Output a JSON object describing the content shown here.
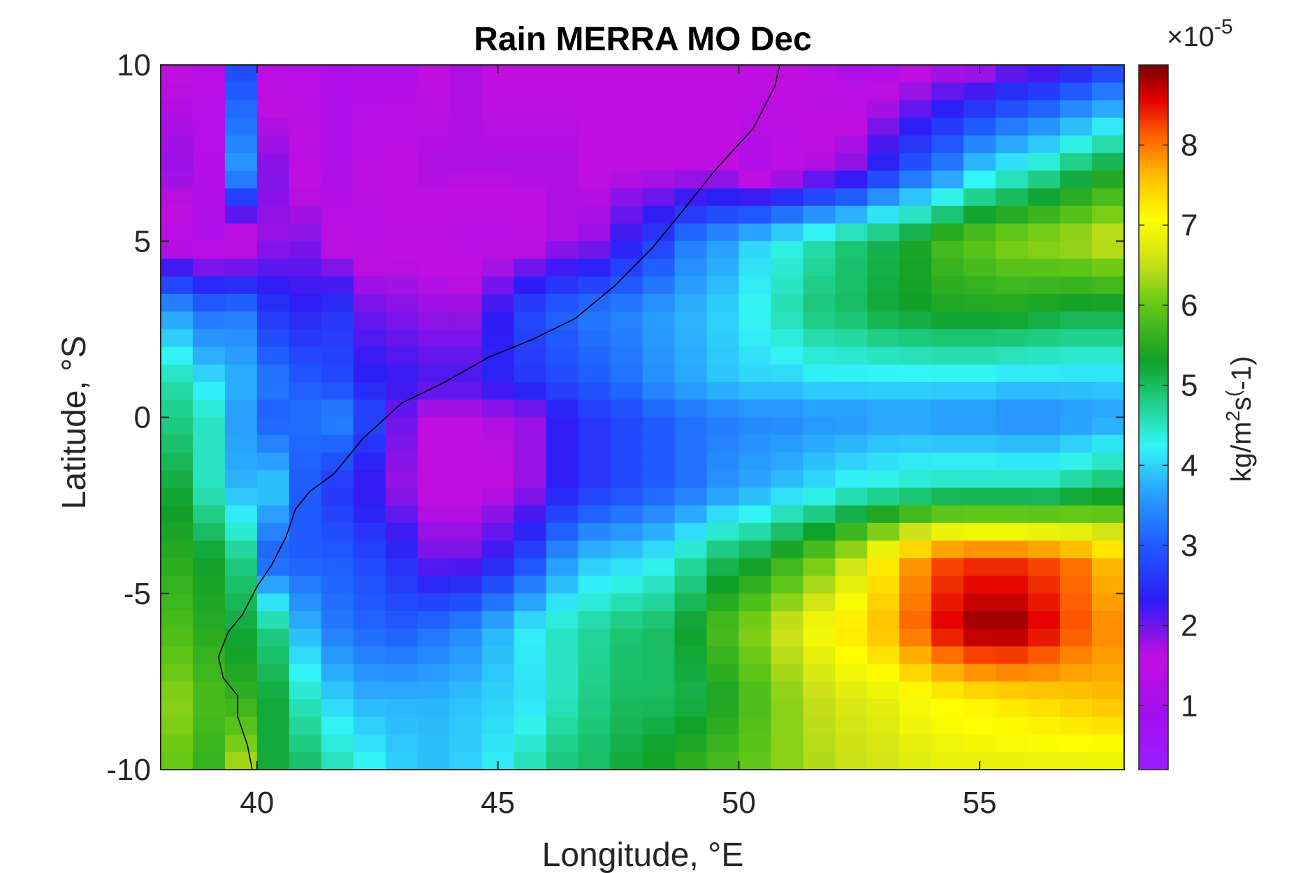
{
  "chart_data": {
    "type": "heatmap",
    "title": "Rain MERRA MO Dec",
    "xlabel": "Longitude, °E",
    "ylabel": "Latitude, °S",
    "xlim": [
      38,
      58
    ],
    "ylim": [
      -10,
      10
    ],
    "xticks": [
      40,
      45,
      50,
      55
    ],
    "xtick_labels": [
      "40",
      "45",
      "50",
      "55"
    ],
    "yticks": [
      10,
      5,
      0,
      -5,
      -10
    ],
    "ytick_labels": [
      "10",
      "5",
      "0",
      "-5",
      "-10"
    ],
    "colorbar": {
      "label": "kg/m",
      "label_sup1": "2",
      "label_mid": "s",
      "label_sup2": "(",
      "label_end": "-1)",
      "multiplier_base": "×10",
      "multiplier_exp": "-5",
      "range": [
        0.2,
        9.0
      ],
      "ticks": [
        1,
        2,
        3,
        4,
        5,
        6,
        7,
        8
      ],
      "tick_labels": [
        "1",
        "2",
        "3",
        "4",
        "5",
        "6",
        "7",
        "8"
      ],
      "colormap": "hsv-reversed"
    },
    "grid": false,
    "grid_cols": 30,
    "grid_rows": 40,
    "z_anchor_rows": {
      "lat_10": [
        1.6,
        1.4,
        2.8,
        1.4,
        1.4,
        1.2,
        1.2,
        1.2,
        1.6,
        1.7,
        1.6,
        1.6,
        1.6,
        1.6,
        1.6,
        1.6,
        1.6,
        1.6,
        1.6,
        1.6,
        1.4,
        1.2,
        1.2,
        1.4,
        1.6,
        1.6,
        1.9,
        2.0,
        2.3,
        2.6
      ],
      "lat_7": [
        1.8,
        1.3,
        3.6,
        1.9,
        1.5,
        1.2,
        1.5,
        1.6,
        1.7,
        1.7,
        1.7,
        1.7,
        1.7,
        1.6,
        1.6,
        1.6,
        1.6,
        1.6,
        1.2,
        1.4,
        1.7,
        1.9,
        2.5,
        3.0,
        3.4,
        4.0,
        4.3,
        4.6,
        5.0,
        5.3
      ],
      "lat_5": [
        1.4,
        1.2,
        1.2,
        1.8,
        1.9,
        1.5,
        1.4,
        1.5,
        1.5,
        1.4,
        1.4,
        1.5,
        1.7,
        1.8,
        2.3,
        2.7,
        3.3,
        3.6,
        4.0,
        4.3,
        4.6,
        4.9,
        5.1,
        5.4,
        5.8,
        6.0,
        6.2,
        6.3,
        6.4,
        6.6
      ],
      "lat_3": [
        3.6,
        3.2,
        3.3,
        2.6,
        2.4,
        2.6,
        2.0,
        1.9,
        1.8,
        1.8,
        2.3,
        2.8,
        3.1,
        3.3,
        3.4,
        3.6,
        3.8,
        4.0,
        4.3,
        4.6,
        4.9,
        5.0,
        5.2,
        5.3,
        5.4,
        5.4,
        5.4,
        5.3,
        5.2,
        5.2
      ],
      "lat_1": [
        4.6,
        4.1,
        3.8,
        3.3,
        3.0,
        2.8,
        2.4,
        2.3,
        2.2,
        2.2,
        2.4,
        2.6,
        2.8,
        3.0,
        3.2,
        3.5,
        3.7,
        3.9,
        4.0,
        4.0,
        4.1,
        4.1,
        4.1,
        4.1,
        4.1,
        4.1,
        4.0,
        4.0,
        4.0,
        4.0
      ],
      "lat_0": [
        4.8,
        4.5,
        3.6,
        3.0,
        3.2,
        3.4,
        2.8,
        2.0,
        1.6,
        1.6,
        1.7,
        1.8,
        2.3,
        2.6,
        2.8,
        3.0,
        3.2,
        3.3,
        3.4,
        3.4,
        3.5,
        3.5,
        3.6,
        3.6,
        3.5,
        3.5,
        3.4,
        3.4,
        3.5,
        3.6
      ],
      "lat_m2": [
        5.2,
        4.5,
        3.8,
        4.0,
        3.0,
        2.6,
        2.2,
        1.8,
        1.5,
        1.5,
        1.6,
        1.8,
        2.3,
        2.6,
        2.8,
        3.0,
        3.2,
        3.5,
        3.7,
        3.9,
        4.1,
        4.3,
        4.4,
        4.5,
        4.6,
        4.6,
        4.6,
        4.6,
        4.8,
        5.0
      ],
      "lat_m4": [
        5.5,
        5.3,
        4.8,
        3.0,
        3.0,
        3.0,
        2.8,
        2.5,
        2.0,
        2.0,
        2.3,
        2.8,
        3.5,
        3.9,
        4.0,
        4.2,
        4.6,
        5.0,
        5.2,
        5.6,
        6.0,
        6.5,
        7.2,
        7.8,
        8.2,
        8.3,
        8.3,
        8.2,
        8.0,
        7.6
      ],
      "lat_m6": [
        5.8,
        5.5,
        5.2,
        4.8,
        3.8,
        3.3,
        3.1,
        3.0,
        3.2,
        3.4,
        3.8,
        4.2,
        4.5,
        4.7,
        4.9,
        5.0,
        5.3,
        5.8,
        6.2,
        6.6,
        7.0,
        7.3,
        7.6,
        8.1,
        8.6,
        8.9,
        8.9,
        8.6,
        8.2,
        7.9
      ],
      "lat_m8": [
        6.2,
        5.8,
        5.6,
        5.2,
        4.5,
        4.0,
        3.8,
        3.8,
        3.8,
        3.9,
        4.0,
        4.1,
        4.5,
        4.8,
        5.0,
        5.0,
        5.1,
        5.4,
        5.8,
        6.2,
        6.5,
        6.7,
        6.8,
        7.0,
        7.1,
        7.2,
        7.3,
        7.4,
        7.5,
        7.6
      ],
      "lat_m10": [
        6.0,
        5.6,
        6.4,
        5.2,
        5.0,
        4.6,
        4.3,
        4.0,
        3.9,
        4.0,
        4.2,
        4.6,
        4.9,
        5.0,
        5.2,
        5.4,
        5.6,
        5.8,
        6.0,
        6.2,
        6.4,
        6.5,
        6.6,
        6.7,
        6.8,
        6.8,
        6.8,
        6.8,
        6.8,
        6.8
      ]
    },
    "z_anchor_lats": [
      10,
      7,
      5,
      3,
      1,
      0,
      -2,
      -4,
      -6,
      -8,
      -10
    ],
    "coastline": {
      "lon": [
        50.85,
        50.75,
        50.3,
        49.5,
        48.8,
        48.2,
        47.4,
        46.6,
        45.7,
        44.8,
        43.9,
        43.0,
        42.2,
        41.6,
        41.1,
        40.8,
        40.6,
        40.3,
        40.0,
        39.7,
        39.4,
        39.2,
        39.3,
        39.6,
        39.6,
        39.8,
        39.9
      ],
      "lat": [
        10.0,
        9.4,
        8.2,
        7.0,
        5.8,
        4.8,
        3.7,
        2.8,
        2.2,
        1.7,
        1.0,
        0.4,
        -0.6,
        -1.6,
        -2.1,
        -2.6,
        -3.4,
        -4.2,
        -4.8,
        -5.6,
        -6.1,
        -6.8,
        -7.4,
        -7.9,
        -8.5,
        -9.3,
        -10.0
      ]
    }
  }
}
